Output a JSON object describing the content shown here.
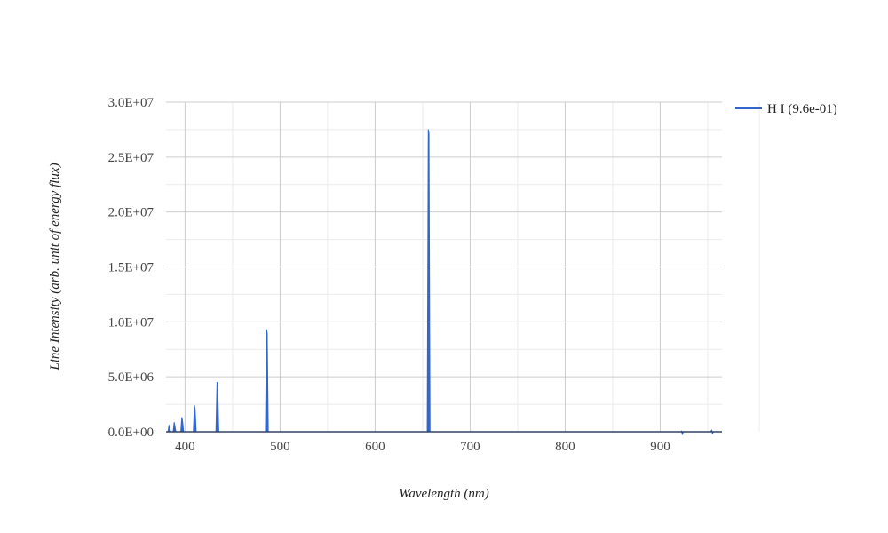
{
  "chart_data": {
    "type": "line",
    "title": "",
    "xlabel": "Wavelength (nm)",
    "ylabel": "Line Intensity (arb. unit of energy flux)",
    "xlim": [
      380,
      965
    ],
    "ylim": [
      0,
      30000000
    ],
    "x_ticks": [
      400,
      500,
      600,
      700,
      800,
      900
    ],
    "x_tick_labels": [
      "400",
      "500",
      "600",
      "700",
      "800",
      "900"
    ],
    "y_ticks": [
      0,
      5000000,
      10000000,
      15000000,
      20000000,
      25000000,
      30000000
    ],
    "y_tick_labels": [
      "0.0E+00",
      "5.0E+06",
      "1.0E+07",
      "1.5E+07",
      "2.0E+07",
      "2.5E+07",
      "3.0E+07"
    ],
    "grid": true,
    "legend_position": "top-right",
    "series": [
      {
        "name": "H I (9.6e-01)",
        "color": "#3366cc",
        "lines": [
          {
            "x": 383.5,
            "y": 600000
          },
          {
            "x": 388.9,
            "y": 850000
          },
          {
            "x": 397.0,
            "y": 1300000
          },
          {
            "x": 410.2,
            "y": 2400000
          },
          {
            "x": 434.0,
            "y": 4500000
          },
          {
            "x": 486.1,
            "y": 9300000
          },
          {
            "x": 656.3,
            "y": 27500000
          },
          {
            "x": 922.9,
            "y": 70000
          },
          {
            "x": 954.6,
            "y": 160000
          }
        ]
      }
    ]
  }
}
